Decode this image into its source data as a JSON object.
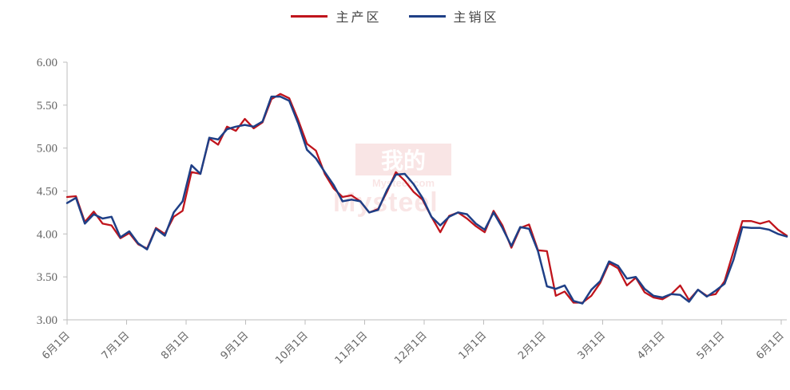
{
  "chart_data": {
    "type": "line",
    "title": "",
    "xlabel": "",
    "ylabel": "",
    "ylim": [
      3.0,
      6.0
    ],
    "y_ticks": [
      "3.00",
      "3.50",
      "4.00",
      "4.50",
      "5.00",
      "5.50",
      "6.00"
    ],
    "x_ticks": [
      "6月1日",
      "7月1日",
      "8月1日",
      "9月1日",
      "10月1日",
      "11月1日",
      "12月1日",
      "1月1日",
      "2月1日",
      "3月1日",
      "4月1日",
      "5月1日",
      "6月1日"
    ],
    "grid": false,
    "legend_position": "top-center",
    "series": [
      {
        "name": "主产区",
        "color": "#c0141c",
        "values": [
          4.43,
          4.44,
          4.14,
          4.26,
          4.12,
          4.1,
          3.95,
          4.01,
          3.88,
          3.83,
          4.07,
          4.0,
          4.2,
          4.27,
          4.72,
          4.7,
          5.11,
          5.04,
          5.25,
          5.2,
          5.34,
          5.23,
          5.3,
          5.57,
          5.63,
          5.58,
          5.33,
          5.05,
          4.97,
          4.7,
          4.53,
          4.43,
          4.45,
          4.38,
          4.25,
          4.29,
          4.49,
          4.72,
          4.62,
          4.49,
          4.4,
          4.2,
          4.02,
          4.21,
          4.25,
          4.18,
          4.09,
          4.02,
          4.27,
          4.1,
          3.84,
          4.07,
          4.11,
          3.81,
          3.8,
          3.28,
          3.33,
          3.2,
          3.2,
          3.28,
          3.43,
          3.66,
          3.6,
          3.4,
          3.49,
          3.32,
          3.26,
          3.24,
          3.3,
          3.4,
          3.23,
          3.35,
          3.28,
          3.3,
          3.45,
          3.8,
          4.15,
          4.15,
          4.12,
          4.15,
          4.05,
          3.98
        ]
      },
      {
        "name": "主销区",
        "color": "#1f3f86",
        "values": [
          4.36,
          4.42,
          4.12,
          4.23,
          4.18,
          4.2,
          3.96,
          4.03,
          3.89,
          3.82,
          4.06,
          3.98,
          4.25,
          4.38,
          4.8,
          4.7,
          5.12,
          5.1,
          5.22,
          5.25,
          5.27,
          5.25,
          5.31,
          5.6,
          5.6,
          5.55,
          5.29,
          4.98,
          4.88,
          4.72,
          4.57,
          4.38,
          4.4,
          4.38,
          4.25,
          4.28,
          4.51,
          4.69,
          4.7,
          4.58,
          4.42,
          4.2,
          4.1,
          4.2,
          4.25,
          4.23,
          4.12,
          4.05,
          4.25,
          4.07,
          3.86,
          4.08,
          4.06,
          3.8,
          3.39,
          3.36,
          3.4,
          3.22,
          3.19,
          3.35,
          3.45,
          3.68,
          3.63,
          3.48,
          3.5,
          3.36,
          3.28,
          3.26,
          3.3,
          3.29,
          3.21,
          3.35,
          3.27,
          3.34,
          3.42,
          3.7,
          4.08,
          4.07,
          4.07,
          4.05,
          4.0,
          3.97
        ]
      }
    ]
  },
  "watermark": {
    "top_text": "我的",
    "mid_text": "Mysteel.com",
    "bottom_text": "Mysteel"
  }
}
